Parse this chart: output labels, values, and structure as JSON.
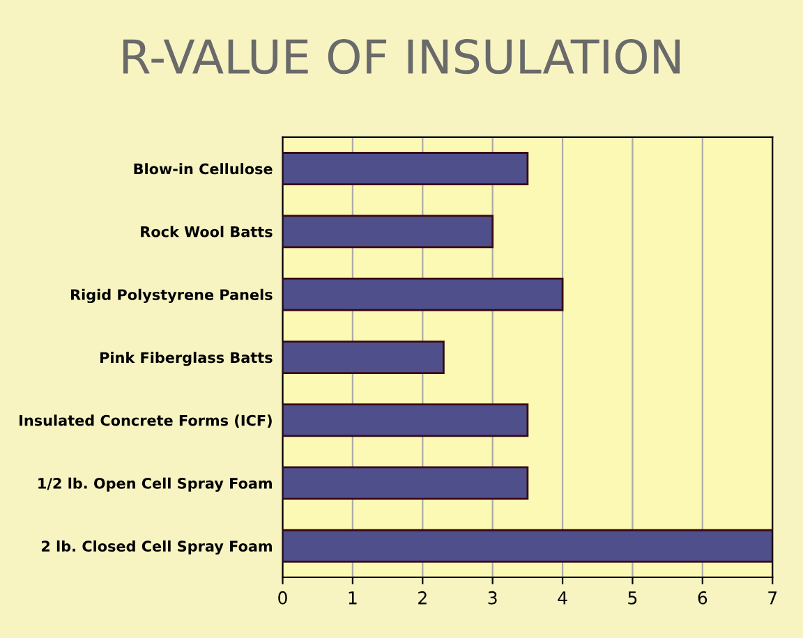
{
  "chart_data": {
    "type": "bar",
    "orientation": "horizontal",
    "title": "R-VALUE OF INSULATION",
    "categories": [
      "Blow-in Cellulose",
      "Rock Wool Batts",
      "Rigid Polystyrene Panels",
      "Pink Fiberglass Batts",
      "Insulated Concrete Forms (ICF)",
      "1/2 lb. Open Cell Spray Foam",
      "2 lb. Closed Cell Spray Foam"
    ],
    "values": [
      3.5,
      3.0,
      4.0,
      2.3,
      3.5,
      3.5,
      7.0
    ],
    "color": "#4f4f8c",
    "xlim": [
      0,
      7
    ],
    "xticks": [
      0,
      1,
      2,
      3,
      4,
      5,
      6,
      7
    ],
    "grid": "x"
  }
}
